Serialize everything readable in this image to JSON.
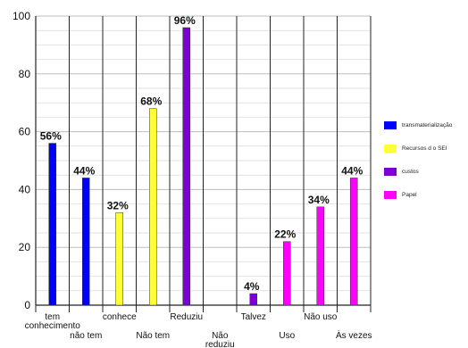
{
  "chart_data": {
    "type": "bar",
    "ylim": [
      0,
      100
    ],
    "yticks": [
      0,
      20,
      40,
      60,
      80,
      100
    ],
    "grid": true,
    "legend_position": "right",
    "groups": [
      "tem conhecimento",
      "conhece",
      "Reduziu",
      "Talvez",
      "Não uso"
    ],
    "categories": [
      "tem conhecimento",
      "não tem",
      "conhece",
      "Não tem",
      "Reduziu",
      "Não reduziu",
      "Talvez",
      "Uso",
      "Não uso",
      "Às vezes"
    ],
    "series": [
      {
        "name": "transmaterialização",
        "color": "#0000ff",
        "values": [
          56,
          44,
          null,
          null,
          null,
          null,
          null,
          null,
          null,
          null
        ]
      },
      {
        "name": "Recursos d o SEI",
        "color": "#ffff33",
        "values": [
          null,
          null,
          32,
          68,
          null,
          null,
          null,
          null,
          null,
          null
        ]
      },
      {
        "name": "custos",
        "color": "#7a00d6",
        "values": [
          null,
          null,
          null,
          null,
          96,
          null,
          4,
          null,
          null,
          null
        ]
      },
      {
        "name": "Papel",
        "color": "#ff00ff",
        "values": [
          null,
          null,
          null,
          null,
          null,
          null,
          null,
          22,
          34,
          44
        ]
      }
    ],
    "data_labels": [
      "56%",
      "44%",
      "32%",
      "68%",
      "96%",
      "4%",
      "22%",
      "34%",
      "44%"
    ]
  }
}
